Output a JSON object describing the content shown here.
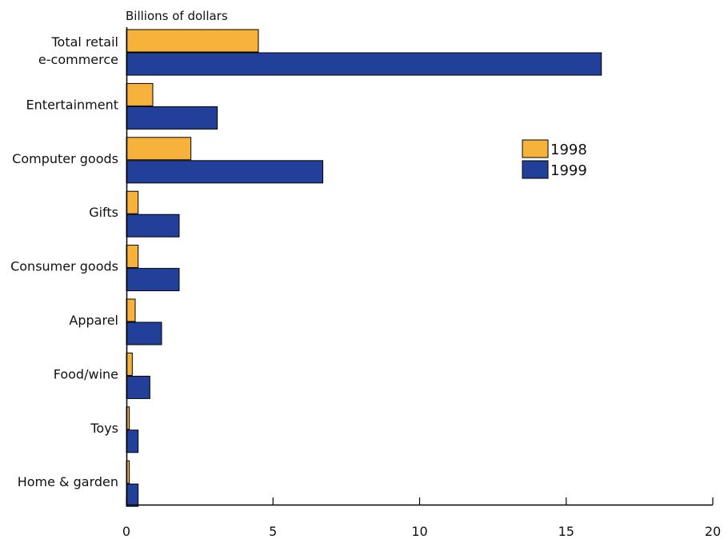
{
  "chart_data": {
    "type": "bar",
    "orientation": "horizontal",
    "title": "",
    "unit_label": "Billions of dollars",
    "categories": [
      [
        "Total retail",
        "e-commerce"
      ],
      [
        "Entertainment"
      ],
      [
        "Computer goods"
      ],
      [
        "Gifts"
      ],
      [
        "Consumer goods"
      ],
      [
        "Apparel"
      ],
      [
        "Food/wine"
      ],
      [
        "Toys"
      ],
      [
        "Home & garden"
      ]
    ],
    "series": [
      {
        "name": "1998",
        "color": "#f7b23b",
        "values": [
          4.5,
          0.9,
          2.2,
          0.4,
          0.4,
          0.3,
          0.2,
          0.1,
          0.1
        ]
      },
      {
        "name": "1999",
        "color": "#22409a",
        "values": [
          16.2,
          3.1,
          6.7,
          1.8,
          1.8,
          1.2,
          0.8,
          0.4,
          0.4
        ]
      }
    ],
    "xlim": [
      0,
      20
    ],
    "xticks": [
      "0",
      "5",
      "10",
      "15",
      "20"
    ],
    "legend_position": "right",
    "grid": false
  }
}
